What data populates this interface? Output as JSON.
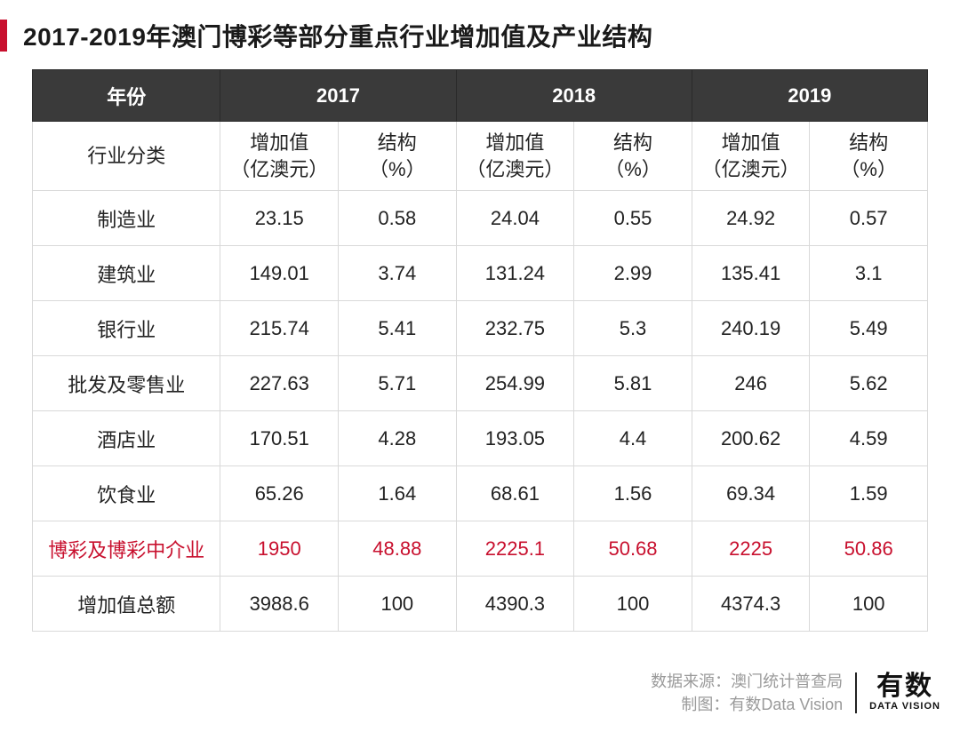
{
  "title": "2017-2019年澳门博彩等部分重点行业增加值及产业结构",
  "table": {
    "year_header_label": "年份",
    "years": [
      "2017",
      "2018",
      "2019"
    ],
    "category_header": "行业分类",
    "value_sub_line1": "增加值",
    "value_sub_line2": "（亿澳元）",
    "pct_sub_line1": "结构",
    "pct_sub_line2": "（%）",
    "rows": [
      {
        "name": "制造业",
        "v": [
          "23.15",
          "0.58",
          "24.04",
          "0.55",
          "24.92",
          "0.57"
        ],
        "highlight": false
      },
      {
        "name": "建筑业",
        "v": [
          "149.01",
          "3.74",
          "131.24",
          "2.99",
          "135.41",
          "3.1"
        ],
        "highlight": false
      },
      {
        "name": "银行业",
        "v": [
          "215.74",
          "5.41",
          "232.75",
          "5.3",
          "240.19",
          "5.49"
        ],
        "highlight": false
      },
      {
        "name": "批发及零售业",
        "v": [
          "227.63",
          "5.71",
          "254.99",
          "5.81",
          "246",
          "5.62"
        ],
        "highlight": false
      },
      {
        "name": "酒店业",
        "v": [
          "170.51",
          "4.28",
          "193.05",
          "4.4",
          "200.62",
          "4.59"
        ],
        "highlight": false
      },
      {
        "name": "饮食业",
        "v": [
          "65.26",
          "1.64",
          "68.61",
          "1.56",
          "69.34",
          "1.59"
        ],
        "highlight": false
      },
      {
        "name": "博彩及博彩中介业",
        "v": [
          "1950",
          "48.88",
          "2225.1",
          "50.68",
          "2225",
          "50.86"
        ],
        "highlight": true
      },
      {
        "name": "增加值总额",
        "v": [
          "3988.6",
          "100",
          "4390.3",
          "100",
          "4374.3",
          "100"
        ],
        "highlight": false
      }
    ]
  },
  "colors": {
    "accent": "#c8102e",
    "header_bg": "#3a3a3a",
    "header_fg": "#ffffff",
    "border": "#d9d9d9",
    "body_text": "#222222",
    "credit_text": "#9a9a9a"
  },
  "footer": {
    "source_label": "数据来源：",
    "source_value": "澳门统计普查局",
    "chart_by_label": "制图：",
    "chart_by_value": "有数Data Vision",
    "logo_cn": "有数",
    "logo_en": "DATA VISION"
  }
}
